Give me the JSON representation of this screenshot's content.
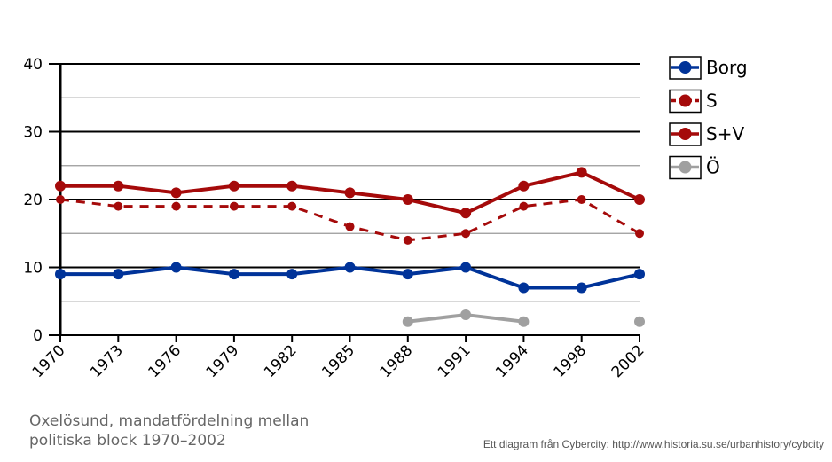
{
  "chart_data": {
    "type": "line",
    "title": "Oxelösund, mandatfördelning mellan politiska block 1970-2002",
    "xlabel": "",
    "ylabel": "",
    "categories": [
      "1970",
      "1973",
      "1976",
      "1979",
      "1982",
      "1985",
      "1988",
      "1991",
      "1994",
      "1998",
      "2002"
    ],
    "ylim": [
      0,
      40
    ],
    "yticks": [
      "0",
      "10",
      "20",
      "30",
      "40"
    ],
    "grid": true,
    "legend_position": "right",
    "series": [
      {
        "name": "Borg",
        "color": "#003399",
        "dashed": false,
        "values": [
          9,
          9,
          10,
          9,
          9,
          10,
          9,
          10,
          7,
          7,
          9
        ]
      },
      {
        "name": "S",
        "color": "#a50a0a",
        "dashed": true,
        "values": [
          20,
          19,
          19,
          19,
          19,
          16,
          14,
          15,
          19,
          20,
          15
        ]
      },
      {
        "name": "S+V",
        "color": "#a50a0a",
        "dashed": false,
        "values": [
          22,
          22,
          21,
          22,
          22,
          21,
          20,
          18,
          22,
          24,
          20
        ]
      },
      {
        "name": "Ö",
        "color": "#a0a0a0",
        "dashed": false,
        "values": [
          null,
          null,
          null,
          null,
          null,
          null,
          2,
          3,
          2,
          null,
          2
        ]
      }
    ]
  },
  "caption": "Oxelösund, mandatfördelning mellan politiska block 1970–2002",
  "credit": "Ett diagram från Cybercity: http://www.historia.su.se/urbanhistory/cybcity"
}
